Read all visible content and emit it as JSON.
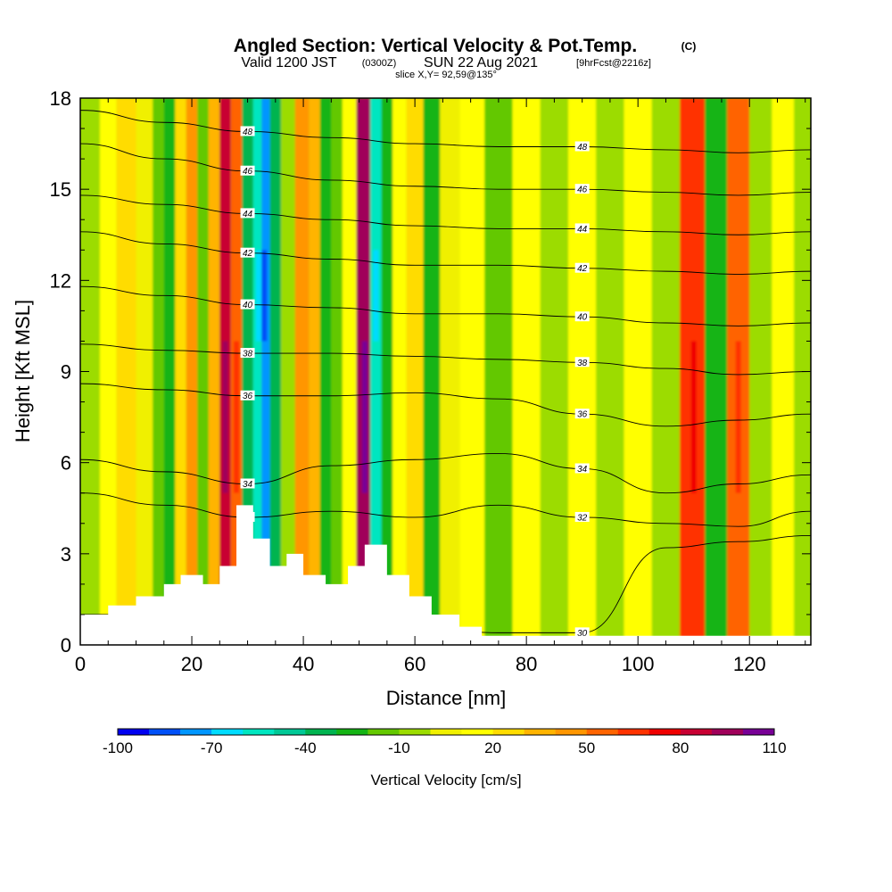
{
  "title": {
    "main": "Angled Section: Vertical Velocity & Pot.Temp.",
    "main_tag": "(C)",
    "line2_a": "Valid 1200 JST",
    "line2_b": "(0300Z)",
    "line2_c": "SUN 22 Aug 2021",
    "line2_d": "[9hrFcst@2216z]",
    "line3": "slice X,Y= 92,59@135°"
  },
  "chart_data": {
    "type": "heatmap",
    "xlabel": "Distance [nm]",
    "ylabel": "Height [Kft MSL]",
    "xlim": [
      0,
      131
    ],
    "ylim": [
      0,
      18
    ],
    "x_ticks": [
      "0",
      "20",
      "40",
      "60",
      "80",
      "100",
      "120"
    ],
    "x_tick_values": [
      0,
      20,
      40,
      60,
      80,
      100,
      120
    ],
    "y_ticks": [
      "0",
      "3",
      "6",
      "9",
      "12",
      "15",
      "18"
    ],
    "y_tick_values": [
      0,
      3,
      6,
      9,
      12,
      15,
      18
    ],
    "colorbar": {
      "title": "Vertical Velocity [cm/s]",
      "min": -100,
      "max": 110,
      "step": 10,
      "tick_labels": [
        "-100",
        "-70",
        "-40",
        "-10",
        "20",
        "50",
        "80",
        "110"
      ],
      "tick_values": [
        -100,
        -70,
        -40,
        -10,
        20,
        50,
        80,
        110
      ],
      "colors": [
        "#0000f0",
        "#0050f8",
        "#0096ff",
        "#00dcff",
        "#00e6c0",
        "#00c896",
        "#00b450",
        "#14b414",
        "#64c800",
        "#9cdc00",
        "#f0f000",
        "#ffff00",
        "#ffdc00",
        "#ffb400",
        "#ff9600",
        "#ff6400",
        "#ff3200",
        "#f00000",
        "#c80032",
        "#a0005a",
        "#780096"
      ]
    },
    "vertical_velocity_bands": [
      {
        "x": 2,
        "w": -5
      },
      {
        "x": 5,
        "w": 15
      },
      {
        "x": 8,
        "w": 25
      },
      {
        "x": 12,
        "w": 8
      },
      {
        "x": 14,
        "w": -15
      },
      {
        "x": 16,
        "w": -30
      },
      {
        "x": 18,
        "w": 20
      },
      {
        "x": 20,
        "w": 40
      },
      {
        "x": 22,
        "w": -20
      },
      {
        "x": 24,
        "w": 30
      },
      {
        "x": 26,
        "w": 80
      },
      {
        "x": 28,
        "w": 50
      },
      {
        "x": 30,
        "w": -40
      },
      {
        "x": 32,
        "w": -60
      },
      {
        "x": 33,
        "w": -80
      },
      {
        "x": 35,
        "w": -40
      },
      {
        "x": 37,
        "w": -10
      },
      {
        "x": 40,
        "w": 45
      },
      {
        "x": 42,
        "w": 30
      },
      {
        "x": 44,
        "w": -30
      },
      {
        "x": 46,
        "w": -20
      },
      {
        "x": 48,
        "w": 10
      },
      {
        "x": 51,
        "w": 90
      },
      {
        "x": 53,
        "w": -60
      },
      {
        "x": 55,
        "w": -30
      },
      {
        "x": 57,
        "w": 10
      },
      {
        "x": 60,
        "w": 20
      },
      {
        "x": 63,
        "w": -30
      },
      {
        "x": 66,
        "w": 5
      },
      {
        "x": 70,
        "w": 15
      },
      {
        "x": 75,
        "w": -15
      },
      {
        "x": 80,
        "w": 10
      },
      {
        "x": 85,
        "w": -10
      },
      {
        "x": 90,
        "w": 15
      },
      {
        "x": 95,
        "w": -5
      },
      {
        "x": 100,
        "w": 10
      },
      {
        "x": 105,
        "w": -10
      },
      {
        "x": 110,
        "w": 60
      },
      {
        "x": 114,
        "w": -30
      },
      {
        "x": 118,
        "w": 50
      },
      {
        "x": 122,
        "w": -5
      },
      {
        "x": 126,
        "w": 15
      },
      {
        "x": 130,
        "w": -5
      }
    ],
    "terrain": [
      {
        "x": 0,
        "h": 1.0
      },
      {
        "x": 5,
        "h": 1.3
      },
      {
        "x": 10,
        "h": 1.6
      },
      {
        "x": 15,
        "h": 2.0
      },
      {
        "x": 18,
        "h": 2.3
      },
      {
        "x": 22,
        "h": 2.0
      },
      {
        "x": 25,
        "h": 2.6
      },
      {
        "x": 28,
        "h": 4.6
      },
      {
        "x": 31,
        "h": 3.5
      },
      {
        "x": 34,
        "h": 2.6
      },
      {
        "x": 37,
        "h": 3.0
      },
      {
        "x": 40,
        "h": 2.3
      },
      {
        "x": 44,
        "h": 2.0
      },
      {
        "x": 48,
        "h": 2.6
      },
      {
        "x": 51,
        "h": 3.3
      },
      {
        "x": 55,
        "h": 2.3
      },
      {
        "x": 59,
        "h": 1.6
      },
      {
        "x": 63,
        "h": 1.0
      },
      {
        "x": 68,
        "h": 0.6
      },
      {
        "x": 72,
        "h": 0.3
      },
      {
        "x": 131,
        "h": 0.3
      }
    ],
    "theta_contours": [
      {
        "label": "30",
        "ys": [
          1.0,
          1.0,
          1.0,
          0.8,
          0.6,
          0.4,
          0.4,
          3.2,
          3.4,
          3.6
        ]
      },
      {
        "label": "32",
        "ys": [
          5.0,
          4.6,
          4.2,
          4.4,
          4.2,
          4.6,
          4.2,
          4.0,
          3.9,
          4.4
        ]
      },
      {
        "label": "34",
        "ys": [
          6.1,
          5.7,
          5.3,
          5.9,
          6.1,
          6.3,
          5.8,
          5.0,
          5.3,
          5.6
        ]
      },
      {
        "label": "36",
        "ys": [
          8.6,
          8.4,
          8.2,
          8.2,
          8.3,
          8.1,
          7.6,
          7.2,
          7.4,
          7.6
        ]
      },
      {
        "label": "38",
        "ys": [
          9.9,
          9.7,
          9.6,
          9.6,
          9.5,
          9.4,
          9.3,
          9.1,
          8.9,
          9.0
        ]
      },
      {
        "label": "40",
        "ys": [
          11.8,
          11.5,
          11.2,
          11.1,
          10.9,
          10.9,
          10.8,
          10.6,
          10.5,
          10.6
        ]
      },
      {
        "label": "42",
        "ys": [
          13.6,
          13.2,
          12.9,
          12.7,
          12.5,
          12.5,
          12.4,
          12.3,
          12.2,
          12.3
        ]
      },
      {
        "label": "44",
        "ys": [
          14.8,
          14.5,
          14.2,
          14.0,
          13.8,
          13.7,
          13.7,
          13.6,
          13.5,
          13.6
        ]
      },
      {
        "label": "46",
        "ys": [
          16.5,
          16.0,
          15.6,
          15.3,
          15.1,
          15.0,
          15.0,
          14.9,
          14.8,
          14.9
        ]
      },
      {
        "label": "48",
        "ys": [
          17.6,
          17.2,
          16.9,
          16.7,
          16.5,
          16.4,
          16.4,
          16.3,
          16.2,
          16.3
        ]
      }
    ],
    "theta_contour_x": [
      0,
      15,
      30,
      45,
      60,
      75,
      90,
      105,
      118,
      131
    ]
  }
}
